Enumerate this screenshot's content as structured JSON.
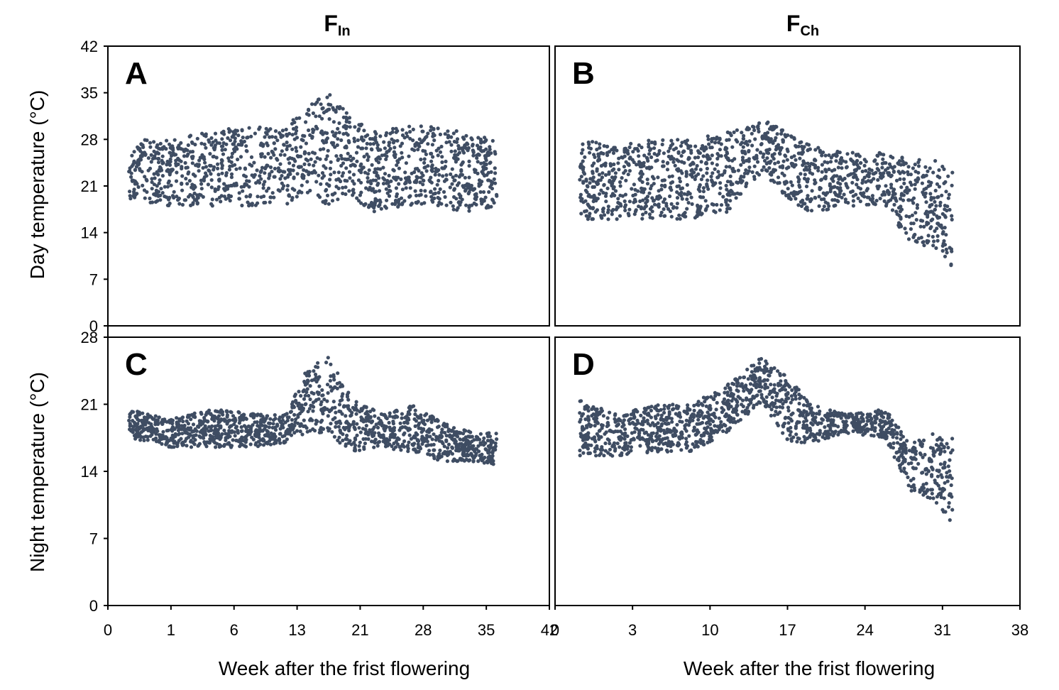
{
  "figure": {
    "columns": [
      {
        "main": "F",
        "sub": "In"
      },
      {
        "main": "F",
        "sub": "Ch"
      }
    ],
    "xlabel": "Week after the frist flowering",
    "ylabel_top": "Day temperature (°C)",
    "ylabel_bottom": "Night temperature (°C)"
  },
  "chart_data": [
    {
      "panel": "A",
      "type": "scatter",
      "column": "F_In",
      "row": "day",
      "ylabel": "Day temperature (°C)",
      "ylim": [
        0,
        42
      ],
      "yticks": [
        0,
        7,
        14,
        21,
        28,
        35,
        42
      ],
      "xlim": [
        0,
        42
      ],
      "color": "#3f4d63",
      "x_range": [
        2,
        37
      ],
      "envelope": [
        {
          "x": 2,
          "lo": 19,
          "hi": 28
        },
        {
          "x": 6,
          "lo": 18,
          "hi": 28
        },
        {
          "x": 9,
          "lo": 18,
          "hi": 29
        },
        {
          "x": 13,
          "lo": 18,
          "hi": 30
        },
        {
          "x": 17,
          "lo": 18,
          "hi": 30
        },
        {
          "x": 19,
          "lo": 20,
          "hi": 33
        },
        {
          "x": 21,
          "lo": 18,
          "hi": 35
        },
        {
          "x": 23,
          "lo": 20,
          "hi": 32
        },
        {
          "x": 25,
          "lo": 17,
          "hi": 29
        },
        {
          "x": 28,
          "lo": 18,
          "hi": 30
        },
        {
          "x": 31,
          "lo": 18,
          "hi": 30
        },
        {
          "x": 34,
          "lo": 17,
          "hi": 29
        },
        {
          "x": 37,
          "lo": 18,
          "hi": 28
        }
      ]
    },
    {
      "panel": "B",
      "type": "scatter",
      "column": "F_Ch",
      "row": "day",
      "ylabel": "Day temperature (°C)",
      "ylim": [
        0,
        42
      ],
      "yticks": [
        0,
        7,
        14,
        21,
        28,
        35,
        42
      ],
      "xlim": [
        0,
        38
      ],
      "color": "#3f4d63",
      "x_range": [
        2,
        32.5
      ],
      "envelope": [
        {
          "x": 2,
          "lo": 16,
          "hi": 28
        },
        {
          "x": 5,
          "lo": 16,
          "hi": 27
        },
        {
          "x": 8,
          "lo": 16,
          "hi": 28
        },
        {
          "x": 11,
          "lo": 16,
          "hi": 28
        },
        {
          "x": 14,
          "lo": 17,
          "hi": 29
        },
        {
          "x": 17,
          "lo": 23,
          "hi": 31
        },
        {
          "x": 19,
          "lo": 19,
          "hi": 29
        },
        {
          "x": 21,
          "lo": 17,
          "hi": 27
        },
        {
          "x": 24,
          "lo": 18,
          "hi": 26
        },
        {
          "x": 27,
          "lo": 18,
          "hi": 26
        },
        {
          "x": 29,
          "lo": 12,
          "hi": 25
        },
        {
          "x": 31,
          "lo": 12,
          "hi": 25
        },
        {
          "x": 32.5,
          "lo": 8,
          "hi": 24
        }
      ]
    },
    {
      "panel": "C",
      "type": "scatter",
      "column": "F_In",
      "row": "night",
      "ylabel": "Night temperature (°C)",
      "ylim": [
        0,
        28
      ],
      "yticks": [
        0,
        7,
        14,
        21,
        28
      ],
      "xlim": [
        0,
        42
      ],
      "xticks": [
        0,
        1,
        6,
        13,
        21,
        28,
        35,
        42
      ],
      "xlabel": "Week after the frist flowering",
      "color": "#3f4d63",
      "x_range": [
        2,
        37
      ],
      "envelope": [
        {
          "x": 2,
          "lo": 17.5,
          "hi": 20.5
        },
        {
          "x": 6,
          "lo": 16.5,
          "hi": 19.5
        },
        {
          "x": 10,
          "lo": 16.5,
          "hi": 20.5
        },
        {
          "x": 14,
          "lo": 16.5,
          "hi": 20
        },
        {
          "x": 17,
          "lo": 17,
          "hi": 20
        },
        {
          "x": 19,
          "lo": 18,
          "hi": 25
        },
        {
          "x": 21,
          "lo": 18,
          "hi": 26
        },
        {
          "x": 23,
          "lo": 16,
          "hi": 22
        },
        {
          "x": 26,
          "lo": 16.5,
          "hi": 20
        },
        {
          "x": 29,
          "lo": 16,
          "hi": 21
        },
        {
          "x": 32,
          "lo": 15,
          "hi": 19
        },
        {
          "x": 35,
          "lo": 15,
          "hi": 18
        },
        {
          "x": 37,
          "lo": 14.5,
          "hi": 18
        }
      ]
    },
    {
      "panel": "D",
      "type": "scatter",
      "column": "F_Ch",
      "row": "night",
      "ylabel": "Night temperature (°C)",
      "ylim": [
        0,
        28
      ],
      "yticks": [
        0,
        7,
        14,
        21,
        28
      ],
      "xlim": [
        0,
        38
      ],
      "xticks": [
        0,
        3,
        10,
        17,
        24,
        31,
        38
      ],
      "xlabel": "Week after the frist flowering",
      "color": "#3f4d63",
      "x_range": [
        2,
        32.5
      ],
      "envelope": [
        {
          "x": 2,
          "lo": 15.5,
          "hi": 21.5
        },
        {
          "x": 5,
          "lo": 15.5,
          "hi": 20
        },
        {
          "x": 8,
          "lo": 16,
          "hi": 21
        },
        {
          "x": 11,
          "lo": 16,
          "hi": 21
        },
        {
          "x": 14,
          "lo": 18,
          "hi": 23
        },
        {
          "x": 17,
          "lo": 21,
          "hi": 26
        },
        {
          "x": 19,
          "lo": 17,
          "hi": 24
        },
        {
          "x": 21,
          "lo": 17,
          "hi": 21
        },
        {
          "x": 24,
          "lo": 18,
          "hi": 20
        },
        {
          "x": 27,
          "lo": 17.5,
          "hi": 20.5
        },
        {
          "x": 29,
          "lo": 12,
          "hi": 17
        },
        {
          "x": 31,
          "lo": 11,
          "hi": 18
        },
        {
          "x": 32.5,
          "lo": 8.5,
          "hi": 17.5
        }
      ]
    }
  ]
}
